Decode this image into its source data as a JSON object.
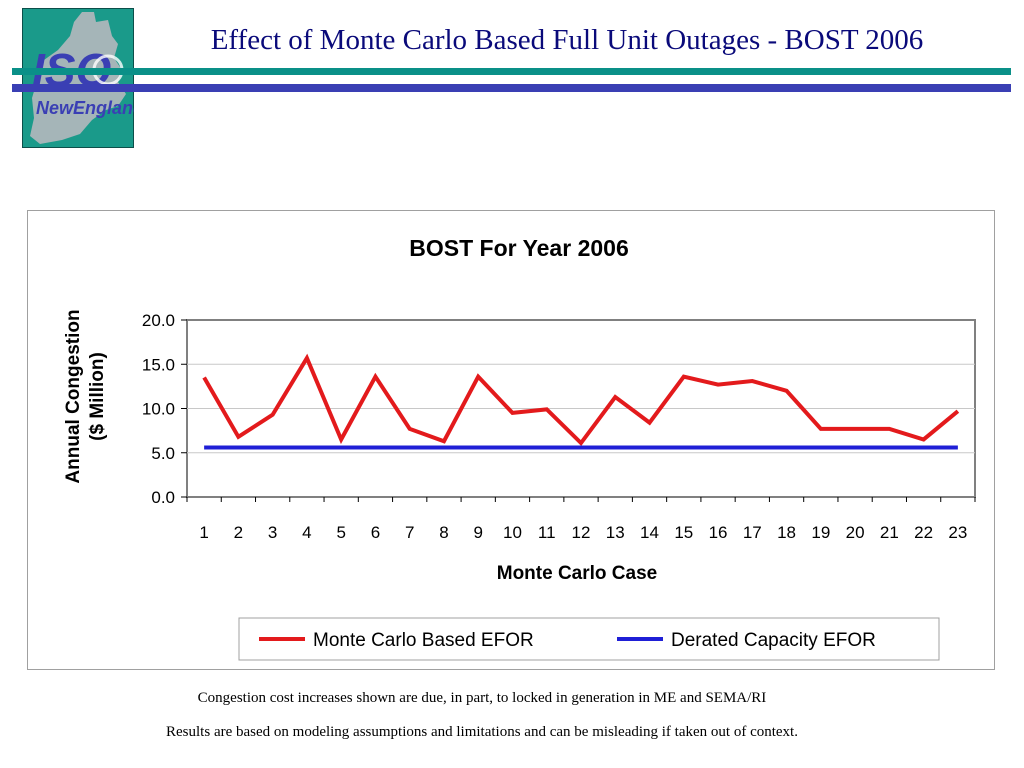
{
  "slide": {
    "title": "Effect of Monte Carlo Based Full Unit Outages - BOST 2006",
    "logo_text": [
      "ISO",
      "NewEngland"
    ],
    "notes": [
      "Congestion cost increases shown are due, in part, to locked in generation in ME and SEMA/RI",
      "Results are based on modeling assumptions and limitations and can be misleading if taken out of context."
    ],
    "colors": {
      "title": "#0a0a7a",
      "band_teal": "#0a9088",
      "band_blue": "#3a3fb4",
      "logo_bg": "#1a9a8a"
    }
  },
  "chart_data": {
    "type": "line",
    "title": "BOST For Year 2006",
    "xlabel": "Monte Carlo Case",
    "ylabel": [
      "Annual Congestion",
      "($ Million)"
    ],
    "ylim": [
      0,
      20
    ],
    "yticks": [
      "0.0",
      "5.0",
      "10.0",
      "15.0",
      "20.0"
    ],
    "ytick_values": [
      0,
      5,
      10,
      15,
      20
    ],
    "categories": [
      "1",
      "2",
      "3",
      "4",
      "5",
      "6",
      "7",
      "8",
      "9",
      "10",
      "11",
      "12",
      "13",
      "14",
      "15",
      "16",
      "17",
      "18",
      "19",
      "20",
      "21",
      "22",
      "23"
    ],
    "grid": true,
    "legend_position": "bottom",
    "series": [
      {
        "name": "Monte Carlo Based EFOR",
        "color": "#e31a1c",
        "values": [
          13.5,
          6.8,
          9.3,
          15.7,
          6.5,
          13.6,
          7.7,
          6.3,
          13.6,
          9.5,
          9.9,
          6.1,
          11.3,
          8.4,
          13.6,
          12.7,
          13.1,
          12.0,
          7.7,
          7.7,
          7.7,
          6.5,
          9.7
        ]
      },
      {
        "name": "Derated Capacity EFOR",
        "color": "#1f1fd6",
        "values": [
          5.6,
          5.6,
          5.6,
          5.6,
          5.6,
          5.6,
          5.6,
          5.6,
          5.6,
          5.6,
          5.6,
          5.6,
          5.6,
          5.6,
          5.6,
          5.6,
          5.6,
          5.6,
          5.6,
          5.6,
          5.6,
          5.6,
          5.6
        ]
      }
    ]
  }
}
